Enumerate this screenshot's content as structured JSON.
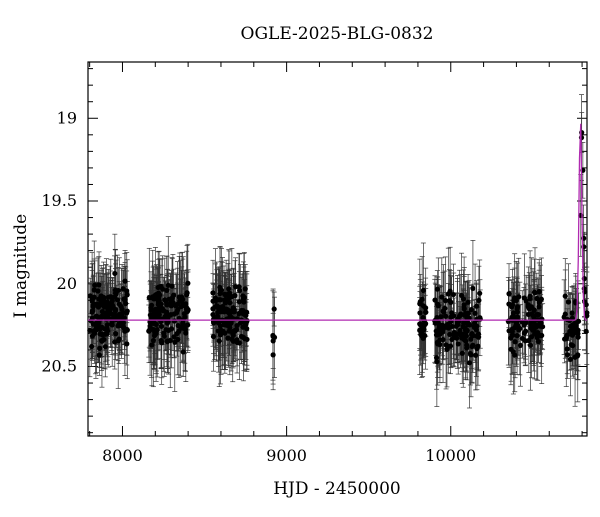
{
  "chart_data": {
    "type": "scatter",
    "title": "OGLE-2025-BLG-0832",
    "xlabel": "HJD - 2450000",
    "ylabel": "I magnitude",
    "xlim": [
      7790,
      10830
    ],
    "ylim": [
      20.92,
      18.66
    ],
    "y_inverted": true,
    "xticks": [
      8000,
      9000,
      10000
    ],
    "xtick_labels": [
      "8000",
      "9000",
      "10000"
    ],
    "yticks": [
      19,
      19.5,
      20,
      20.5
    ],
    "ytick_labels": [
      "19",
      "19.5",
      "20",
      "20.5"
    ],
    "grid": false,
    "legend": "none",
    "colors": {
      "points": "#000000",
      "model": "#b02ab0"
    },
    "baseline_magnitude": 20.22,
    "peak": {
      "x": 10790,
      "y": 19.0
    },
    "seasons": [
      {
        "x_start": 7800,
        "x_end": 8030,
        "y_mean": 20.18,
        "n_points": 150
      },
      {
        "x_start": 8160,
        "x_end": 8400,
        "y_mean": 20.18,
        "n_points": 150
      },
      {
        "x_start": 8550,
        "x_end": 8760,
        "y_mean": 20.2,
        "n_points": 140
      },
      {
        "x_start": 8910,
        "x_end": 8930,
        "y_mean": 20.35,
        "n_points": 6
      },
      {
        "x_start": 9810,
        "x_end": 9850,
        "y_mean": 20.22,
        "n_points": 30
      },
      {
        "x_start": 9900,
        "x_end": 10180,
        "y_mean": 20.25,
        "n_points": 140
      },
      {
        "x_start": 10350,
        "x_end": 10560,
        "y_mean": 20.22,
        "n_points": 110
      },
      {
        "x_start": 10690,
        "x_end": 10780,
        "y_mean": 20.28,
        "n_points": 40
      },
      {
        "x_start": 10790,
        "x_end": 10830,
        "y_mean": 20.15,
        "n_points": 15
      }
    ]
  }
}
